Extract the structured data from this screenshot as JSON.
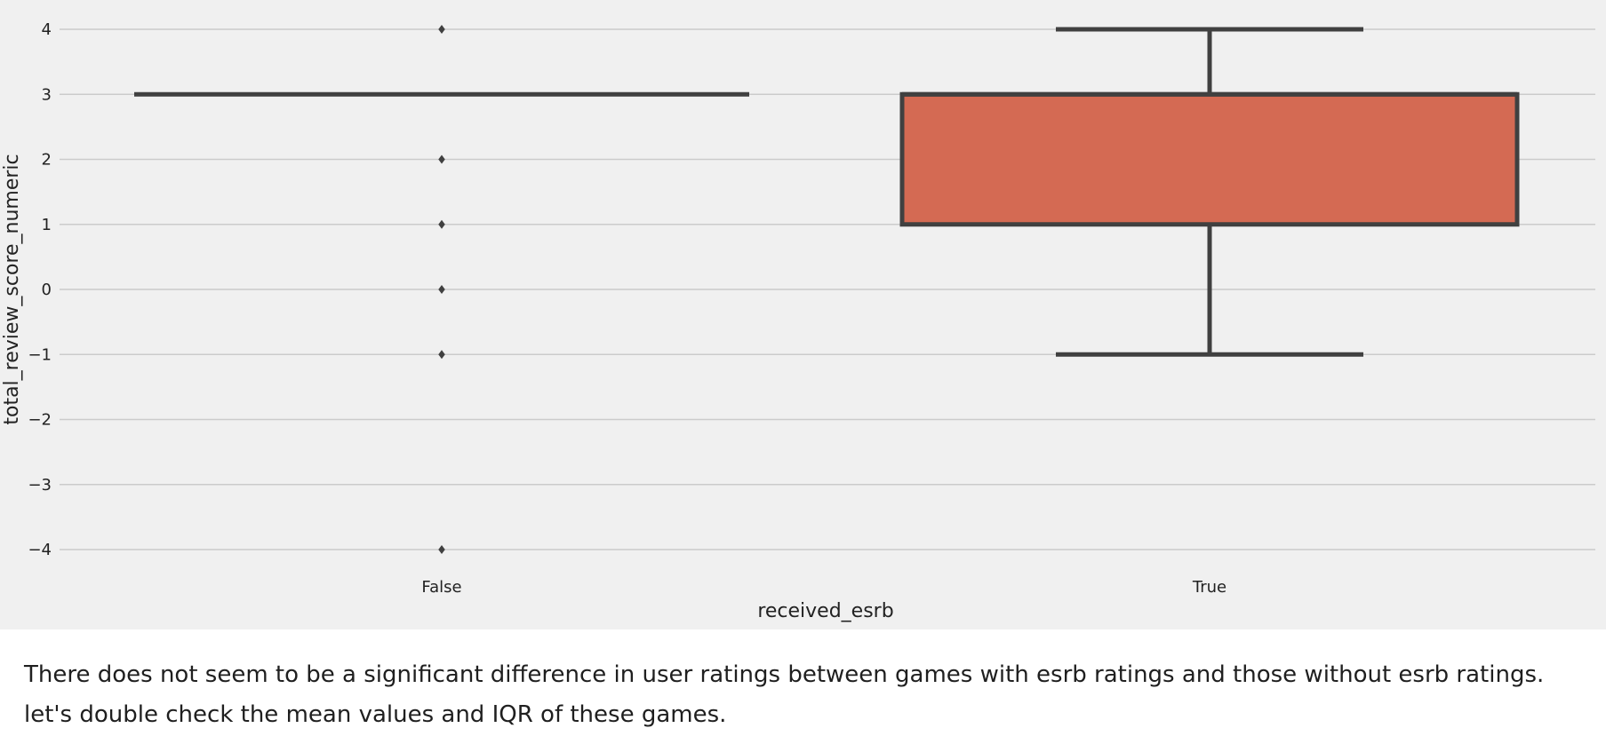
{
  "chart_data": {
    "type": "box",
    "xlabel": "received_esrb",
    "ylabel": "total_review_score_numeric",
    "ylim": [
      -4.45,
      4.45
    ],
    "yticks": [
      4,
      3,
      2,
      1,
      0,
      -1,
      -2,
      -3,
      -4
    ],
    "ytick_labels": [
      "4",
      "3",
      "2",
      "1",
      "0",
      "−1",
      "−2",
      "−3",
      "−4"
    ],
    "grid": "horizontal",
    "categories": [
      "False",
      "True"
    ],
    "boxes": [
      {
        "category": "False",
        "q1": 3,
        "median": 3,
        "q3": 3,
        "whisker_low": 3,
        "whisker_high": 3,
        "outliers": [
          4,
          2,
          1,
          0,
          -1,
          -4
        ]
      },
      {
        "category": "True",
        "q1": 1,
        "median": 3,
        "q3": 3,
        "whisker_low": -1,
        "whisker_high": 4,
        "outliers": []
      }
    ],
    "box_color": "#d46a53",
    "line_color": "#404040",
    "background_color": "#f0f0f0",
    "grid_color": "#cbcbcb"
  },
  "notes": {
    "line1": "There does not seem to be a significant difference in user ratings between games with esrb ratings and those without esrb ratings.",
    "line2": "let's double check the mean values and IQR of these games."
  }
}
